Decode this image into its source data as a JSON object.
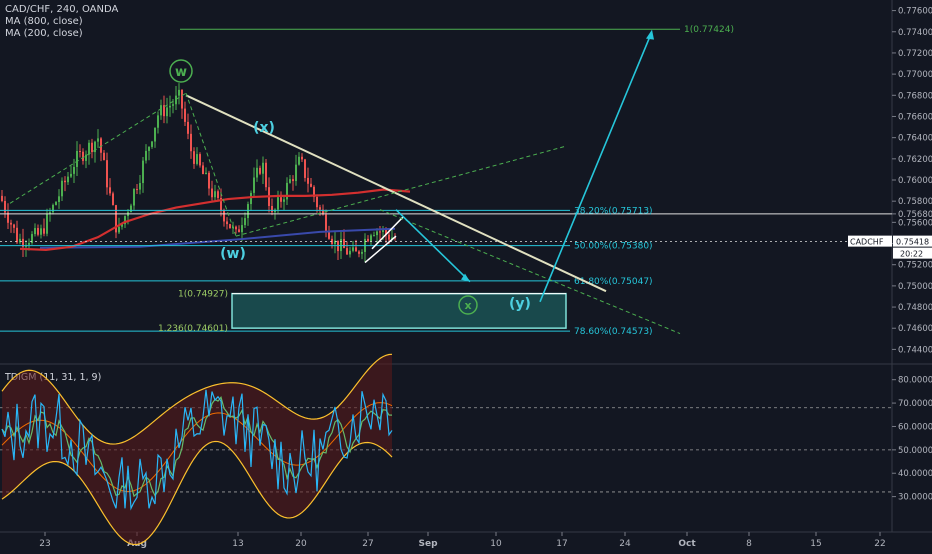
{
  "header": {
    "symbol_line": "CAD/CHF, 240, OANDA",
    "ma1": "MA (800, close)",
    "ma2": "MA (200, close)"
  },
  "price_axis": {
    "ticks": [
      "0.77600",
      "0.77400",
      "0.77200",
      "0.77000",
      "0.76800",
      "0.76600",
      "0.76400",
      "0.76200",
      "0.76000",
      "0.75800",
      "0.75680",
      "0.75600",
      "0.75400",
      "0.75200",
      "0.75000",
      "0.74800",
      "0.74600",
      "0.74400"
    ],
    "last_price_label": "CADCHF",
    "last_price": "0.75418",
    "countdown": "20:22"
  },
  "time_axis": {
    "ticks": [
      "23",
      "Aug",
      "13",
      "20",
      "27",
      "Sep",
      "10",
      "17",
      "24",
      "Oct",
      "8",
      "15",
      "22"
    ]
  },
  "fib_levels": [
    {
      "label": "1(0.77424)",
      "value": 0.77424
    },
    {
      "label": "38.20%(0.75713)",
      "value": 0.75713
    },
    {
      "label": "50.00%(0.75380)",
      "value": 0.7538
    },
    {
      "label": "61.80%(0.75047)",
      "value": 0.75047
    },
    {
      "label": "1(0.74927)",
      "value": 0.74927
    },
    {
      "label": "1.236(0.74601)",
      "value": 0.74601
    },
    {
      "label": "78.60%(0.74573)",
      "value": 0.74573
    }
  ],
  "wave_labels": [
    "w",
    "(x)",
    "(w)",
    "x",
    "(y)"
  ],
  "indicator": {
    "title": "TDIGM (11, 31, 1, 9)",
    "ticks": [
      "80.0000",
      "70.0000",
      "60.0000",
      "50.0000",
      "40.0000",
      "30.0000"
    ]
  },
  "colors": {
    "background": "#131722",
    "up_candle": "#4caf50",
    "down_candle": "#ef5350",
    "ma200": "#d32f2f",
    "ma800": "#3949ab",
    "fib": "#26c6da",
    "trend": "#e0e0c0",
    "green_text": "#4caf50",
    "zone": "#26a69a"
  },
  "chart_data": {
    "type": "candlestick",
    "symbol": "CAD/CHF",
    "timeframe": "240",
    "ylim": [
      0.743,
      0.777
    ],
    "x_ticks": [
      "23",
      "Aug",
      "13",
      "20",
      "27",
      "Sep",
      "10",
      "17",
      "24",
      "Oct",
      "8",
      "15",
      "22"
    ],
    "key_prices": {
      "last": 0.75418,
      "w_high": 0.768,
      "target": 0.77424,
      "reaction_level": 0.7568
    },
    "ma200_path": [
      0.7535,
      0.7534,
      0.7537,
      0.7546,
      0.756,
      0.7568,
      0.7574,
      0.7578,
      0.7582,
      0.7584,
      0.7585,
      0.7585,
      0.7586,
      0.7588,
      0.7591,
      0.7589
    ],
    "indicator_ylim": [
      20,
      85
    ],
    "indicator_levels": [
      32,
      50,
      68
    ]
  }
}
